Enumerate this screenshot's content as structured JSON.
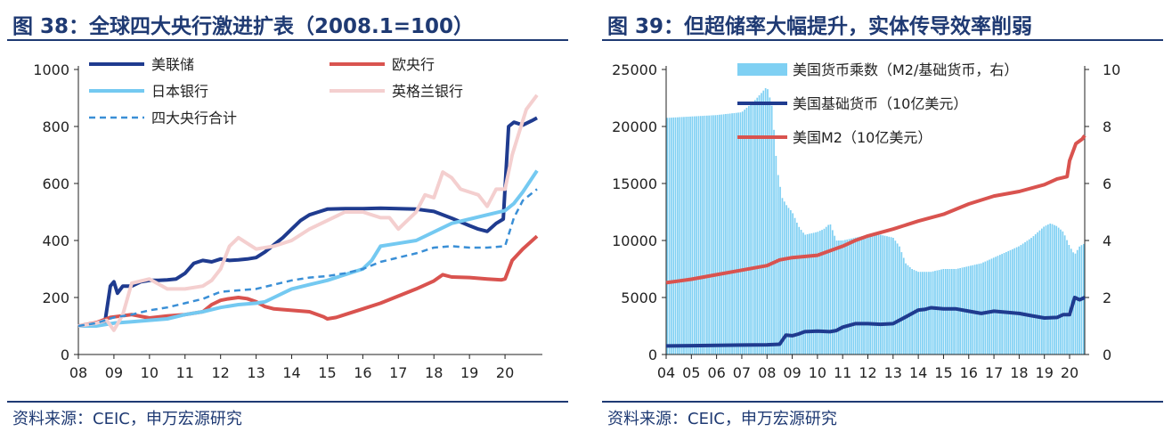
{
  "left": {
    "title": "图 38：全球四大央行激进扩表（2008.1=100）",
    "source": "资料来源：CEIC，申万宏源研究",
    "chart_data": {
      "type": "line",
      "title": "图 38：全球四大央行激进扩表（2008.1=100）",
      "xlabel": "",
      "ylabel": "",
      "x_ticks": [
        "08",
        "09",
        "10",
        "11",
        "12",
        "13",
        "14",
        "15",
        "16",
        "17",
        "18",
        "19",
        "20"
      ],
      "xlim": [
        2008,
        2020.95
      ],
      "y_ticks": [
        0,
        200,
        400,
        600,
        800,
        1000
      ],
      "ylim": [
        0,
        1000
      ],
      "grid": false,
      "legend_position": "top",
      "series": [
        {
          "name": "美联储",
          "color": "#1f3b8f",
          "width": 4,
          "dash": "",
          "x": [
            2008,
            2008.5,
            2008.75,
            2008.9,
            2009,
            2009.1,
            2009.25,
            2009.5,
            2009.75,
            2010,
            2010.25,
            2010.5,
            2010.75,
            2011,
            2011.25,
            2011.5,
            2011.75,
            2012,
            2012.25,
            2012.5,
            2012.75,
            2013,
            2013.25,
            2013.5,
            2013.75,
            2014,
            2014.25,
            2014.5,
            2014.75,
            2015,
            2015.5,
            2016,
            2016.5,
            2017,
            2017.5,
            2018,
            2018.5,
            2019,
            2019.25,
            2019.5,
            2019.75,
            2019.95,
            2020.1,
            2020.25,
            2020.5,
            2020.75,
            2020.9
          ],
          "values": [
            100,
            105,
            115,
            240,
            255,
            215,
            240,
            240,
            255,
            260,
            260,
            262,
            265,
            285,
            320,
            330,
            325,
            335,
            330,
            332,
            335,
            340,
            360,
            385,
            410,
            440,
            470,
            490,
            500,
            510,
            512,
            512,
            513,
            512,
            510,
            502,
            478,
            452,
            440,
            432,
            460,
            475,
            800,
            815,
            805,
            820,
            830
          ]
        },
        {
          "name": "欧央行",
          "color": "#d9534f",
          "width": 4,
          "dash": "",
          "x": [
            2008,
            2008.5,
            2008.9,
            2009,
            2009.5,
            2010,
            2010.5,
            2011,
            2011.5,
            2011.75,
            2012,
            2012.2,
            2012.5,
            2012.75,
            2013,
            2013.25,
            2013.5,
            2014,
            2014.5,
            2014.9,
            2015,
            2015.25,
            2015.5,
            2016,
            2016.5,
            2017,
            2017.5,
            2018,
            2018.25,
            2018.5,
            2019,
            2019.5,
            2019.9,
            2020,
            2020.2,
            2020.5,
            2020.9
          ],
          "values": [
            100,
            112,
            130,
            132,
            140,
            128,
            135,
            140,
            150,
            175,
            190,
            195,
            200,
            196,
            185,
            168,
            160,
            155,
            150,
            132,
            125,
            130,
            140,
            160,
            180,
            205,
            230,
            258,
            280,
            272,
            270,
            265,
            262,
            265,
            330,
            370,
            415
          ]
        },
        {
          "name": "日本银行",
          "color": "#74c9f1",
          "width": 4,
          "dash": "",
          "x": [
            2008,
            2008.5,
            2009,
            2009.5,
            2010,
            2010.5,
            2011,
            2011.5,
            2012,
            2012.5,
            2013,
            2013.25,
            2013.5,
            2013.75,
            2014,
            2014.5,
            2015,
            2015.5,
            2016,
            2016.25,
            2016.5,
            2017,
            2017.5,
            2018,
            2018.5,
            2019,
            2019.5,
            2020,
            2020.25,
            2020.5,
            2020.9
          ],
          "values": [
            100,
            100,
            110,
            115,
            120,
            125,
            140,
            150,
            165,
            175,
            180,
            185,
            200,
            215,
            230,
            245,
            260,
            280,
            300,
            330,
            380,
            390,
            400,
            430,
            460,
            475,
            490,
            505,
            530,
            570,
            645
          ]
        },
        {
          "name": "英格兰银行",
          "color": "#f4cfcf",
          "width": 4,
          "dash": "",
          "x": [
            2008,
            2008.5,
            2008.8,
            2009,
            2009.25,
            2009.5,
            2010,
            2010.5,
            2011,
            2011.5,
            2011.75,
            2012,
            2012.25,
            2012.5,
            2012.75,
            2013,
            2013.5,
            2014,
            2014.5,
            2015,
            2015.5,
            2016,
            2016.5,
            2016.75,
            2017,
            2017.5,
            2017.75,
            2018,
            2018.25,
            2018.5,
            2018.75,
            2019,
            2019.25,
            2019.5,
            2019.75,
            2020,
            2020.2,
            2020.4,
            2020.6,
            2020.9
          ],
          "values": [
            100,
            110,
            120,
            85,
            140,
            250,
            265,
            230,
            230,
            240,
            260,
            300,
            380,
            410,
            390,
            370,
            380,
            400,
            440,
            470,
            500,
            500,
            480,
            480,
            440,
            500,
            560,
            550,
            640,
            620,
            580,
            570,
            560,
            520,
            580,
            580,
            700,
            780,
            860,
            910
          ]
        },
        {
          "name": "四大央行合计",
          "color": "#3a8fd6",
          "width": 2.5,
          "dash": "7,5",
          "x": [
            2008,
            2008.5,
            2009,
            2009.5,
            2010,
            2010.5,
            2011,
            2011.5,
            2012,
            2012.5,
            2013,
            2013.5,
            2014,
            2014.5,
            2015,
            2015.5,
            2016,
            2016.5,
            2017,
            2017.5,
            2018,
            2018.5,
            2019,
            2019.5,
            2020,
            2020.25,
            2020.5,
            2020.9
          ],
          "values": [
            100,
            110,
            130,
            140,
            155,
            165,
            180,
            195,
            220,
            225,
            230,
            245,
            260,
            270,
            275,
            285,
            300,
            325,
            340,
            355,
            375,
            380,
            375,
            375,
            380,
            480,
            540,
            580
          ]
        }
      ]
    }
  },
  "right": {
    "title": "图 39：但超储率大幅提升，实体传导效率削弱",
    "source": "资料来源：CEIC，申万宏源研究",
    "chart_data": {
      "type": "bar",
      "title": "图 39：但超储率大幅提升，实体传导效率削弱",
      "x_ticks": [
        "04",
        "05",
        "06",
        "07",
        "08",
        "09",
        "10",
        "11",
        "12",
        "13",
        "14",
        "15",
        "16",
        "17",
        "18",
        "19",
        "20"
      ],
      "xlim": [
        2004,
        2020.6
      ],
      "y_left_ticks": [
        0,
        5000,
        10000,
        15000,
        20000,
        25000
      ],
      "y_left_lim": [
        0,
        25000
      ],
      "y_right_ticks": [
        0,
        2,
        4,
        6,
        8,
        10
      ],
      "y_right_lim": [
        0,
        10
      ],
      "grid": false,
      "legend_position": "top",
      "series": [
        {
          "name": "美国货币乘数（M2/基础货币，右）",
          "type": "bar",
          "axis": "right",
          "color": "#7fd0f3",
          "x": [
            2004,
            2005,
            2006,
            2007,
            2007.5,
            2008,
            2008.2,
            2008.4,
            2008.6,
            2008.8,
            2009,
            2009.25,
            2009.5,
            2010,
            2010.25,
            2010.5,
            2010.75,
            2011,
            2011.5,
            2012,
            2012.5,
            2013,
            2013.25,
            2013.5,
            2013.75,
            2014,
            2014.5,
            2015,
            2015.5,
            2016,
            2016.5,
            2017,
            2017.5,
            2018,
            2018.5,
            2019,
            2019.25,
            2019.5,
            2019.75,
            2020,
            2020.2,
            2020.4,
            2020.6
          ],
          "values": [
            8.3,
            8.35,
            8.4,
            8.5,
            8.9,
            9.4,
            8.7,
            6.5,
            5.5,
            5.2,
            5,
            4.5,
            4.2,
            4.3,
            4.4,
            4.6,
            4.0,
            4.0,
            4.1,
            4.2,
            4.2,
            4.1,
            3.8,
            3.2,
            3.0,
            2.9,
            2.9,
            3.0,
            3.0,
            3.1,
            3.2,
            3.4,
            3.6,
            3.8,
            4.1,
            4.5,
            4.6,
            4.5,
            4.3,
            3.8,
            3.5,
            3.8,
            3.9
          ]
        },
        {
          "name": "美国基础货币（10亿美元）",
          "type": "line",
          "axis": "left",
          "color": "#1f3b8f",
          "x": [
            2004,
            2005,
            2006,
            2007,
            2008,
            2008.5,
            2008.75,
            2009,
            2009.25,
            2009.5,
            2010,
            2010.5,
            2010.75,
            2011,
            2011.5,
            2012,
            2012.5,
            2013,
            2013.5,
            2014,
            2014.25,
            2014.5,
            2015,
            2015.5,
            2016,
            2016.5,
            2017,
            2017.5,
            2018,
            2018.5,
            2019,
            2019.5,
            2019.75,
            2020,
            2020.2,
            2020.4,
            2020.6
          ],
          "values": [
            750,
            770,
            800,
            830,
            850,
            900,
            1700,
            1650,
            1800,
            2000,
            2050,
            2000,
            2100,
            2400,
            2700,
            2700,
            2650,
            2700,
            3300,
            3900,
            3950,
            4100,
            4000,
            4000,
            3800,
            3600,
            3800,
            3700,
            3600,
            3400,
            3200,
            3250,
            3500,
            3500,
            5000,
            4800,
            5000
          ]
        },
        {
          "name": "美国M2（10亿美元）",
          "type": "line",
          "axis": "left",
          "color": "#d9534f",
          "x": [
            2004,
            2005,
            2006,
            2007,
            2008,
            2008.5,
            2009,
            2010,
            2011,
            2011.5,
            2012,
            2013,
            2014,
            2015,
            2016,
            2017,
            2018,
            2019,
            2019.5,
            2019.9,
            2020,
            2020.25,
            2020.5,
            2020.6
          ],
          "values": [
            6300,
            6600,
            7000,
            7400,
            7800,
            8300,
            8500,
            8700,
            9500,
            10000,
            10400,
            11000,
            11700,
            12300,
            13200,
            13900,
            14300,
            14900,
            15400,
            15600,
            17000,
            18500,
            18900,
            19200
          ]
        }
      ]
    }
  }
}
